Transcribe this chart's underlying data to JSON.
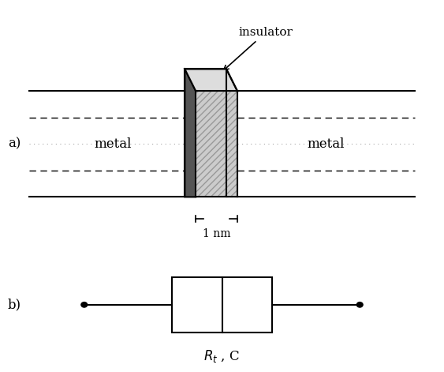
{
  "bg_color": "#ffffff",
  "fig_width": 5.63,
  "fig_height": 4.71,
  "dpi": 100,
  "label_a": "a)",
  "label_b": "b)",
  "insulator_label": "insulator",
  "metal_left_label": "metal",
  "metal_right_label": "metal",
  "nm_label": "1 nm",
  "rt_c_label": "$R_t$ , C",
  "line_color": "#000000",
  "hatch_color": "#999999",
  "gray_fill": "#bbbbbb",
  "dark_fill": "#555555",
  "light_fill": "#dddddd",
  "dotted_color": "#aaaaaa"
}
